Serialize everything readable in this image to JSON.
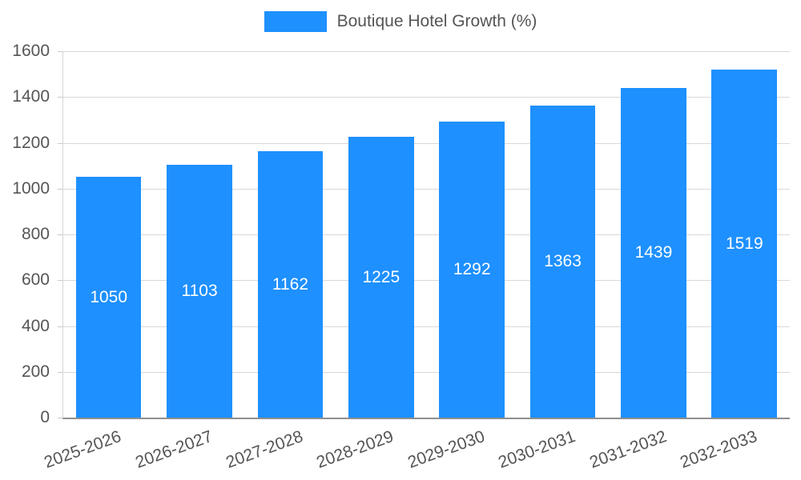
{
  "colors": {
    "bar": "#1e90ff",
    "value_label": "#ffffff",
    "axis_text": "#555555",
    "grid": "#d8d8d8"
  },
  "chart_data": {
    "type": "bar",
    "title": "Boutique Hotel Growth (%)",
    "legend_entries": [
      "Boutique Hotel Growth (%)"
    ],
    "legend_position": "top",
    "categories": [
      "2025-2026",
      "2026-2027",
      "2027-2028",
      "2028-2029",
      "2029-2030",
      "2030-2031",
      "2031-2032",
      "2032-2033"
    ],
    "values": [
      1050,
      1103,
      1162,
      1225,
      1292,
      1363,
      1439,
      1519
    ],
    "xlabel": "",
    "ylabel": "",
    "ylim": [
      0,
      1600
    ],
    "yticks": [
      0,
      200,
      400,
      600,
      800,
      1000,
      1200,
      1400,
      1600
    ],
    "grid": true,
    "bar_label_position": "center"
  }
}
